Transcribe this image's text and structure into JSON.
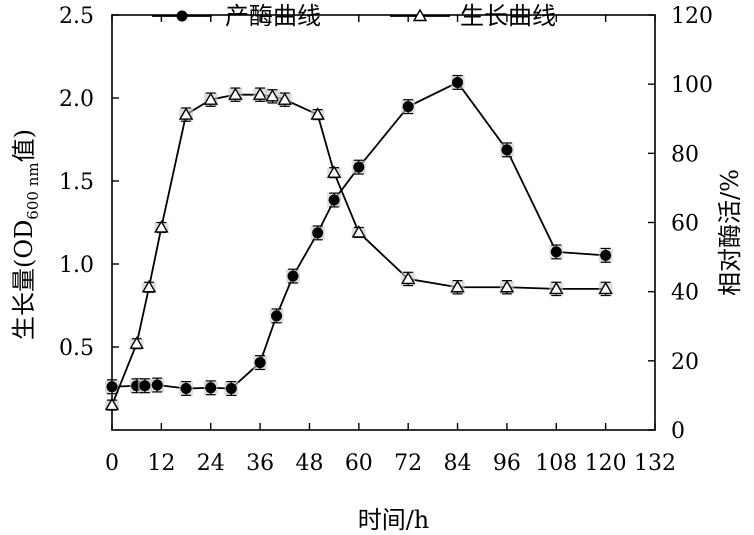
{
  "chart_data": {
    "type": "line",
    "x_values": [
      0,
      6,
      8,
      12,
      18,
      24,
      30,
      36,
      40,
      44,
      50,
      54,
      60,
      72,
      84,
      96,
      108,
      120
    ],
    "x_axis": {
      "label": "时间/h",
      "min": 0,
      "max": 132,
      "ticks": [
        0,
        12,
        24,
        36,
        48,
        60,
        72,
        84,
        96,
        108,
        120,
        132
      ]
    },
    "y_left_axis": {
      "label_main": "生长量(OD",
      "label_sub": "600 nm",
      "label_tail": "值)",
      "min": 0,
      "max": 2.5,
      "ticks": [
        0.5,
        1.0,
        1.5,
        2.0,
        2.5
      ],
      "tick_labels": [
        "0.5",
        "1.0",
        "1.5",
        "2.0",
        "2.5"
      ]
    },
    "y_right_axis": {
      "label": "相对酶活/%",
      "min": 0,
      "max": 120,
      "ticks": [
        0,
        20,
        40,
        60,
        80,
        100,
        120
      ]
    },
    "series": [
      {
        "name": "产酶曲线",
        "marker": "filled-circle",
        "axis": "right",
        "x": [
          0,
          6,
          8,
          11,
          18,
          24,
          29,
          36,
          40,
          44,
          50,
          54,
          60,
          72,
          84,
          96,
          108,
          120
        ],
        "values": [
          12.5,
          12.8,
          12.8,
          13.0,
          12.0,
          12.2,
          12.0,
          19.5,
          33,
          44.5,
          57,
          66.5,
          76,
          93.5,
          100.5,
          81,
          51.5,
          50.5
        ],
        "error": [
          2.0,
          2.0,
          2.0,
          2.0,
          2.0,
          2.0,
          2.0,
          2.0,
          2.0,
          2.0,
          2.0,
          2.0,
          2.0,
          2.0,
          2.0,
          2.0,
          2.0,
          2.0
        ]
      },
      {
        "name": "生长曲线",
        "marker": "hollow-triangle",
        "axis": "left",
        "x": [
          0,
          6,
          9,
          12,
          18,
          24,
          30,
          36,
          39,
          42,
          50,
          54,
          60,
          72,
          84,
          96,
          108,
          120
        ],
        "values": [
          0.15,
          0.52,
          0.86,
          1.22,
          1.9,
          1.99,
          2.02,
          2.02,
          2.01,
          1.99,
          1.9,
          1.55,
          1.19,
          0.91,
          0.86,
          0.86,
          0.85,
          0.85
        ],
        "error": [
          0.03,
          0.03,
          0.03,
          0.03,
          0.04,
          0.04,
          0.04,
          0.04,
          0.04,
          0.04,
          0.03,
          0.03,
          0.03,
          0.04,
          0.04,
          0.04,
          0.04,
          0.04
        ]
      }
    ],
    "legend": "top-center",
    "grid": false
  }
}
